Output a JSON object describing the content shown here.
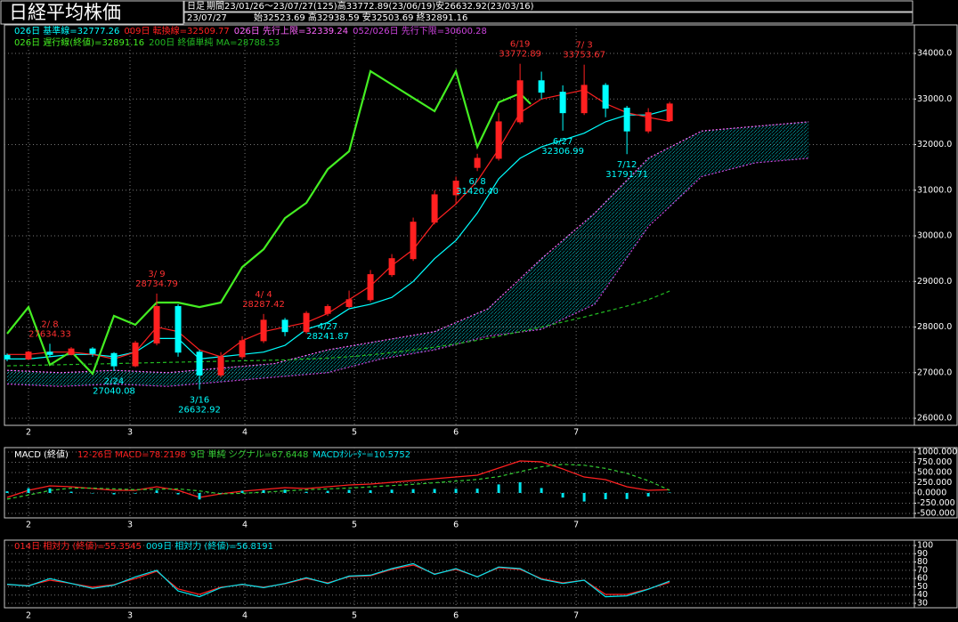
{
  "header": {
    "title": "日経平均株価",
    "timeframe": "日足",
    "period": "期間23/01/26～23/07/27(125)高33772.89(23/06/19)安26632.92(23/03/16)",
    "date": "23/07/27",
    "ohlc": "始32523.69 高32938.59 安32503.69 終32891.16"
  },
  "chart_data": [
    {
      "type": "candlestick",
      "x": [
        0,
        4,
        8,
        12,
        16,
        20,
        24,
        28,
        32,
        36,
        40,
        44,
        48,
        52,
        56,
        60,
        64,
        68,
        72,
        76,
        80,
        84,
        88,
        92,
        96,
        100,
        104,
        108,
        112,
        116,
        120,
        124
      ],
      "open": [
        27380,
        27300,
        27450,
        27400,
        27520,
        27420,
        27150,
        27650,
        28450,
        27450,
        26950,
        27350,
        27700,
        28150,
        27900,
        28300,
        28450,
        28600,
        29150,
        29500,
        30300,
        30900,
        31500,
        31700,
        32500,
        33400,
        33150,
        32700,
        33300,
        32800,
        32300,
        32523.69
      ],
      "high": [
        27420,
        27480,
        27634.33,
        27560,
        27560,
        27450,
        27700,
        28734.79,
        28500,
        27500,
        27450,
        27800,
        28287.42,
        28200,
        28350,
        28500,
        28800,
        29250,
        29600,
        30400,
        31000,
        31300,
        31800,
        32700,
        33772.89,
        33600,
        33300,
        33753.67,
        33350,
        32850,
        32800,
        32938.59
      ],
      "low": [
        27250,
        27280,
        27350,
        27380,
        27350,
        27040.08,
        27120,
        27600,
        27350,
        26632.92,
        26900,
        27300,
        27650,
        27800,
        27850,
        28241.87,
        28400,
        28550,
        29100,
        29450,
        30250,
        30700,
        31420.4,
        31650,
        32450,
        33000,
        32306.99,
        32650,
        32600,
        31791.71,
        32250,
        32503.69
      ],
      "close": [
        27300,
        27450,
        27400,
        27520,
        27420,
        27150,
        27650,
        28450,
        27450,
        26950,
        27350,
        27700,
        28150,
        27900,
        28300,
        28450,
        28600,
        29150,
        29500,
        30300,
        30900,
        31200,
        31700,
        32500,
        33400,
        33150,
        32700,
        33300,
        32800,
        32300,
        32700,
        32891.16
      ],
      "up_color": "#ff2020",
      "down_color": "#00ffff",
      "cloud_color": "#00e5ee",
      "series": [
        {
          "name": "026日 基準線=32777.26",
          "color": "#00ffff",
          "style": "solid",
          "x": [
            0,
            4,
            8,
            12,
            16,
            20,
            24,
            28,
            32,
            36,
            40,
            44,
            48,
            52,
            56,
            60,
            64,
            68,
            72,
            76,
            80,
            84,
            88,
            92,
            96,
            100,
            104,
            108,
            112,
            116,
            120,
            124
          ],
          "values": [
            27300,
            27300,
            27350,
            27400,
            27400,
            27350,
            27450,
            27750,
            27750,
            27300,
            27350,
            27400,
            27450,
            27600,
            27950,
            28100,
            28400,
            28500,
            28650,
            29000,
            29500,
            29900,
            30500,
            31250,
            31700,
            31950,
            32100,
            32250,
            32500,
            32650,
            32650,
            32777.26
          ]
        },
        {
          "name": "009日 転換線=32509.77",
          "color": "#ff2020",
          "style": "solid",
          "x": [
            0,
            4,
            8,
            12,
            16,
            20,
            24,
            28,
            32,
            36,
            40,
            44,
            48,
            52,
            56,
            60,
            64,
            68,
            72,
            76,
            80,
            84,
            88,
            92,
            96,
            100,
            104,
            108,
            112,
            116,
            120,
            124
          ],
          "values": [
            27400,
            27400,
            27450,
            27450,
            27400,
            27300,
            27450,
            28000,
            27900,
            27500,
            27350,
            27700,
            27900,
            28000,
            28100,
            28300,
            28600,
            28900,
            29350,
            29700,
            30300,
            30700,
            31200,
            31900,
            32700,
            33000,
            33100,
            33200,
            32900,
            32700,
            32600,
            32509.77
          ]
        },
        {
          "name": "026日 先行上限=32339.24",
          "color": "#ff66ff",
          "style": "span",
          "x": [
            0,
            10,
            20,
            30,
            40,
            50,
            60,
            70,
            80,
            90,
            100,
            110,
            120,
            130,
            140,
            150
          ],
          "values": [
            27050,
            27000,
            27050,
            27000,
            27100,
            27200,
            27500,
            27700,
            27900,
            28400,
            29500,
            30500,
            31700,
            32300,
            32400,
            32500
          ]
        },
        {
          "name": "052/026日 先行下限=30600.28",
          "color": "#cc44dd",
          "style": "span",
          "x": [
            0,
            10,
            20,
            30,
            40,
            50,
            60,
            70,
            80,
            90,
            100,
            110,
            120,
            130,
            140,
            150
          ],
          "values": [
            26750,
            26700,
            26750,
            26700,
            26800,
            26900,
            27000,
            27300,
            27500,
            27800,
            27950,
            28500,
            30200,
            31300,
            31600,
            31700
          ]
        },
        {
          "name": "026日 遅行線(終値)=32891.16",
          "color": "#44ee22",
          "style": "thick",
          "x": [
            0,
            4,
            8,
            12,
            16,
            20,
            24,
            28,
            32,
            36,
            40,
            44,
            48,
            52,
            56,
            60,
            64,
            68,
            72,
            76,
            80,
            84,
            88,
            92,
            96,
            98
          ],
          "values": [
            27854,
            28439,
            27171,
            27463,
            26976,
            28244,
            28049,
            28537,
            28537,
            28439,
            28537,
            29317,
            29707,
            30390,
            30722,
            31463,
            31854,
            33610,
            33317,
            33024,
            32732,
            33610,
            31951,
            32927,
            33122,
            32891.16
          ]
        },
        {
          "name": "200日 終値単純 MA=28788.53",
          "color": "#22bb22",
          "style": "dashed",
          "x": [
            0,
            4,
            8,
            12,
            16,
            20,
            24,
            28,
            32,
            36,
            40,
            44,
            48,
            52,
            56,
            60,
            64,
            68,
            72,
            76,
            80,
            84,
            88,
            92,
            96,
            100,
            104,
            108,
            112,
            116,
            120,
            124
          ],
          "values": [
            27150,
            27160,
            27170,
            27180,
            27190,
            27200,
            27210,
            27220,
            27230,
            27240,
            27250,
            27260,
            27270,
            27280,
            27300,
            27320,
            27350,
            27390,
            27440,
            27500,
            27560,
            27630,
            27710,
            27800,
            27900,
            28000,
            28110,
            28220,
            28340,
            28460,
            28600,
            28788.53
          ]
        }
      ],
      "annotations": [
        {
          "date": "2/ 8",
          "value": 27634.33,
          "x": 8,
          "kind": "high",
          "color": "#ff3030"
        },
        {
          "date": "2/24",
          "value": 27040.08,
          "x": 20,
          "kind": "low",
          "color": "#00ffff"
        },
        {
          "date": "3/ 9",
          "value": 28734.79,
          "x": 28,
          "kind": "high",
          "color": "#ff3030"
        },
        {
          "date": "3/16",
          "value": 26632.92,
          "x": 36,
          "kind": "low",
          "color": "#00ffff"
        },
        {
          "date": "4/ 4",
          "value": 28287.42,
          "x": 48,
          "kind": "high",
          "color": "#ff3030"
        },
        {
          "date": "4/27",
          "value": 28241.87,
          "x": 60,
          "kind": "low",
          "color": "#00ffff"
        },
        {
          "date": "6/ 8",
          "value": 31420.4,
          "label": "31420.40",
          "x": 88,
          "kind": "low",
          "color": "#00ffff"
        },
        {
          "date": "6/19",
          "value": 33772.89,
          "x": 96,
          "kind": "high",
          "color": "#ff3030"
        },
        {
          "date": "6/27",
          "value": 32306.99,
          "x": 104,
          "kind": "low",
          "color": "#00ffff"
        },
        {
          "date": "7/ 3",
          "value": 33753.67,
          "x": 108,
          "kind": "high",
          "color": "#ff3030"
        },
        {
          "date": "7/12",
          "value": 31791.71,
          "x": 116,
          "kind": "low",
          "color": "#00ffff"
        }
      ],
      "xlim": [
        -0.5,
        169.8
      ],
      "xticks": [
        {
          "value": 4,
          "label": "2"
        },
        {
          "value": 23,
          "label": "3"
        },
        {
          "value": 44.5,
          "label": "4"
        },
        {
          "value": 65,
          "label": "5"
        },
        {
          "value": 84,
          "label": "6"
        },
        {
          "value": 106.5,
          "label": "7"
        }
      ],
      "ylim": [
        25845,
        34625
      ],
      "yticks": [
        {
          "value": 26000,
          "label": "26000.0"
        },
        {
          "value": 27000,
          "label": "27000.0"
        },
        {
          "value": 28000,
          "label": "28000.0"
        },
        {
          "value": 29000,
          "label": "29000.0"
        },
        {
          "value": 30000,
          "label": "30000.0"
        },
        {
          "value": 31000,
          "label": "31000.0"
        },
        {
          "value": 32000,
          "label": "32000.0"
        },
        {
          "value": 33000,
          "label": "33000.0"
        },
        {
          "value": 34000,
          "label": "34000.0"
        }
      ],
      "grid": true
    },
    {
      "type": "macd",
      "title": "MACD (終値)",
      "x": [
        0,
        4,
        8,
        12,
        16,
        20,
        24,
        28,
        32,
        36,
        40,
        44,
        48,
        52,
        56,
        60,
        64,
        68,
        72,
        76,
        80,
        84,
        88,
        92,
        96,
        100,
        104,
        108,
        112,
        116,
        120,
        124
      ],
      "series": [
        {
          "name": "12-26日 MACD=78.2198",
          "color": "#ff2020",
          "type": "line",
          "values": [
            -109,
            65,
            174,
            152,
            109,
            65,
            65,
            152,
            65,
            -109,
            -22,
            43,
            87,
            130,
            109,
            152,
            196,
            217,
            261,
            304,
            348,
            391,
            435,
            609,
            783,
            761,
            587,
            391,
            326,
            152,
            65,
            78.2198
          ]
        },
        {
          "name": "9日 単純 シグナル=67.6448",
          "color": "#33cc33",
          "type": "dashed",
          "values": [
            -150,
            -50,
            60,
            120,
            120,
            100,
            80,
            90,
            100,
            50,
            -20,
            -10,
            20,
            50,
            80,
            100,
            120,
            150,
            180,
            210,
            250,
            290,
            330,
            400,
            520,
            640,
            700,
            680,
            600,
            480,
            300,
            67.6448
          ]
        },
        {
          "name": "MACDｵｼﾚｰﾀｰ=10.5752",
          "color": "#00e5ee",
          "type": "bar",
          "values": [
            41,
            115,
            114,
            32,
            -11,
            -35,
            -15,
            62,
            -35,
            -159,
            -2,
            53,
            67,
            80,
            29,
            52,
            76,
            67,
            81,
            94,
            98,
            101,
            105,
            209,
            263,
            121,
            -113,
            -209,
            -154,
            -148,
            -85,
            10.5752
          ]
        }
      ],
      "xlim": [
        -0.5,
        169.8
      ],
      "xticks": [
        {
          "value": 4,
          "label": "2"
        },
        {
          "value": 23,
          "label": "3"
        },
        {
          "value": 44.5,
          "label": "4"
        },
        {
          "value": 65,
          "label": "5"
        },
        {
          "value": 84,
          "label": "6"
        },
        {
          "value": 106.5,
          "label": "7"
        }
      ],
      "ylim": [
        -610,
        1110
      ],
      "yticks": [
        {
          "value": 1000,
          "label": "1000.000"
        },
        {
          "value": 750,
          "label": "750.000"
        },
        {
          "value": 500,
          "label": "500.000"
        },
        {
          "value": 250,
          "label": "250.000"
        },
        {
          "value": 0,
          "label": "0.0000"
        },
        {
          "value": -250,
          "label": "-250.000"
        },
        {
          "value": -500,
          "label": "-500.000"
        }
      ],
      "grid": true
    },
    {
      "type": "line",
      "x": [
        0,
        4,
        8,
        12,
        16,
        20,
        24,
        28,
        32,
        36,
        40,
        44,
        48,
        52,
        56,
        60,
        64,
        68,
        72,
        76,
        80,
        84,
        88,
        92,
        96,
        100,
        104,
        108,
        112,
        116,
        120,
        124
      ],
      "series": [
        {
          "name": "014日 相対力 (終値)=55.3545",
          "color": "#ff2020",
          "type": "line",
          "values": [
            52.6,
            51.5,
            58,
            54,
            49.5,
            52.6,
            60,
            68.8,
            47.4,
            40.8,
            49.5,
            52.6,
            49.5,
            53.7,
            60,
            54.8,
            62.3,
            63.4,
            71,
            76.3,
            65.7,
            71,
            62.3,
            73.1,
            71,
            60,
            54.8,
            58,
            40.8,
            40.8,
            47.4,
            55.3545
          ]
        },
        {
          "name": "009日 相対力 (終値)=56.8191",
          "color": "#00e5ee",
          "type": "line",
          "values": [
            53,
            51,
            60,
            54,
            48,
            52,
            62,
            70,
            45,
            38,
            49,
            53,
            49,
            54,
            61,
            54,
            63,
            64,
            72,
            78,
            65,
            72,
            62,
            74,
            72,
            59,
            54,
            58,
            38,
            39,
            47,
            56.8191
          ]
        }
      ],
      "xlim": [
        -0.5,
        169.8
      ],
      "xticks": [
        {
          "value": 4,
          "label": "2"
        },
        {
          "value": 23,
          "label": "3"
        },
        {
          "value": 44.5,
          "label": "4"
        },
        {
          "value": 65,
          "label": "5"
        },
        {
          "value": 84,
          "label": "6"
        },
        {
          "value": 106.5,
          "label": "7"
        }
      ],
      "ylim": [
        24.6,
        106.5
      ],
      "yticks": [
        100,
        90,
        80,
        70,
        60,
        50,
        40,
        30
      ],
      "grid": true
    }
  ]
}
